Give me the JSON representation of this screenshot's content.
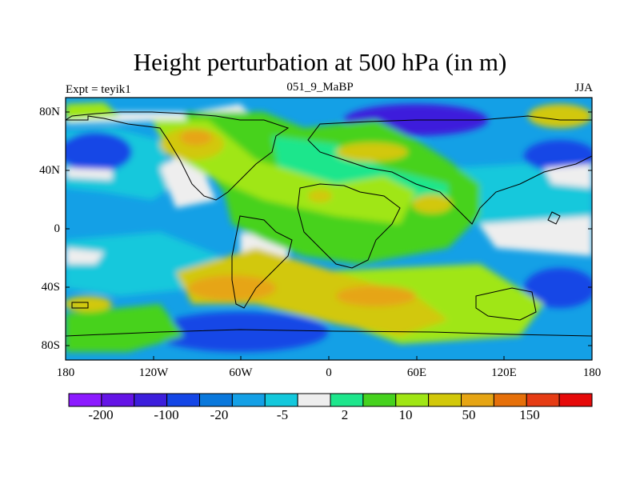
{
  "title": "Height perturbation at 500 hPa (in m)",
  "left_label": "Expt = teyik1",
  "center_label": "051_9_MaBP",
  "right_label": "JJA",
  "lat_ticks": [
    "80N",
    "40N",
    "0",
    "40S",
    "80S"
  ],
  "lon_ticks": [
    "180",
    "120W",
    "60W",
    "0",
    "60E",
    "120E",
    "180"
  ],
  "colorbar": {
    "colors": [
      "#8c1aff",
      "#6414e6",
      "#3c1edc",
      "#1446e6",
      "#0a78dc",
      "#14a0e6",
      "#14c8dc",
      "#eeeeee",
      "#1ee68c",
      "#46d21e",
      "#a0e614",
      "#d2c80a",
      "#e6a514",
      "#e6700a",
      "#e63c14",
      "#e60a0a"
    ],
    "labels": [
      "-200",
      "-100",
      "-20",
      "-5",
      "2",
      "10",
      "50",
      "150"
    ]
  }
}
